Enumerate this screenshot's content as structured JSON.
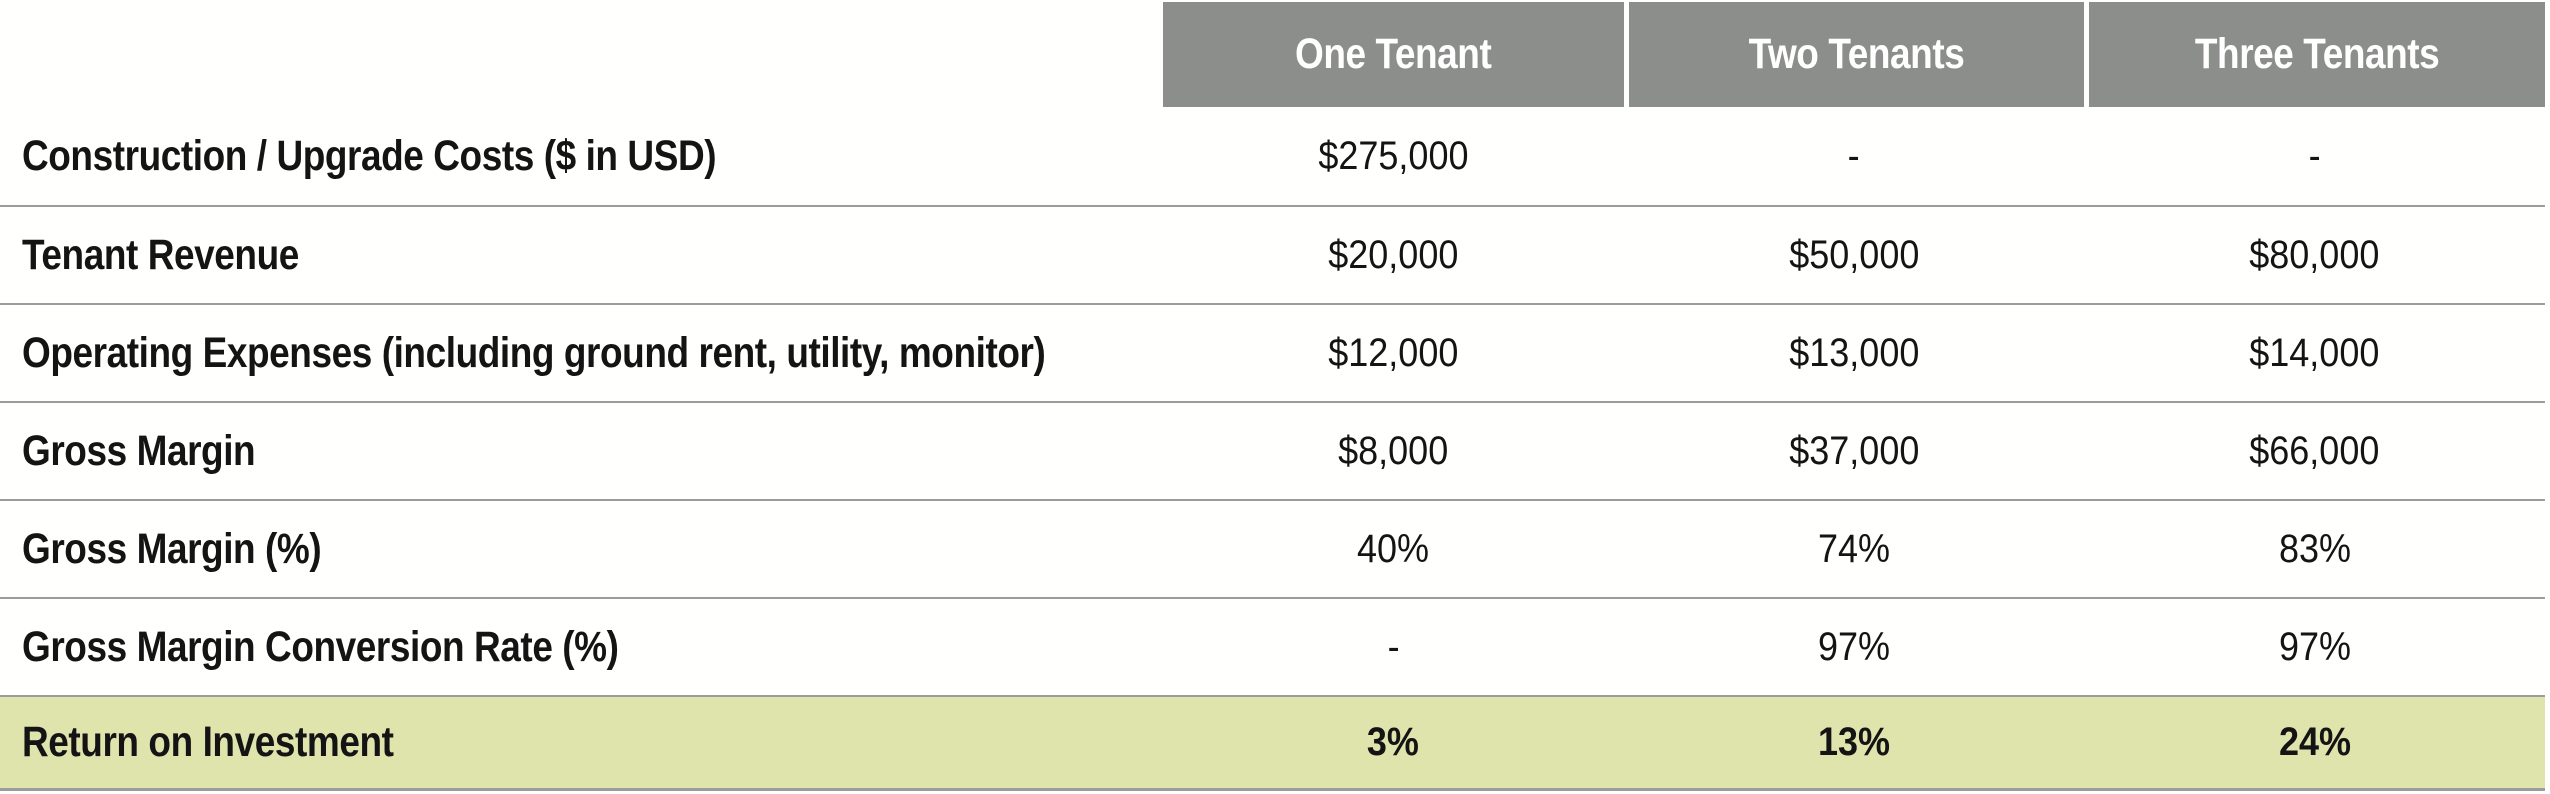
{
  "table": {
    "columns": [
      "One Tenant",
      "Two Tenants",
      "Three Tenants"
    ],
    "rows": [
      {
        "label": "Construction / Upgrade Costs ($ in USD)",
        "values": [
          "$275,000",
          "-",
          "-"
        ],
        "highlight": false
      },
      {
        "label": "Tenant Revenue",
        "values": [
          "$20,000",
          "$50,000",
          "$80,000"
        ],
        "highlight": false
      },
      {
        "label": "Operating Expenses (including ground rent, utility, monitor)",
        "values": [
          "$12,000",
          "$13,000",
          "$14,000"
        ],
        "highlight": false
      },
      {
        "label": "Gross Margin",
        "values": [
          "$8,000",
          "$37,000",
          "$66,000"
        ],
        "highlight": false
      },
      {
        "label": "Gross Margin (%)",
        "values": [
          "40%",
          "74%",
          "83%"
        ],
        "highlight": false
      },
      {
        "label": "Gross Margin Conversion Rate (%)",
        "values": [
          "-",
          "97%",
          "97%"
        ],
        "highlight": false
      },
      {
        "label": "Return on Investment",
        "values": [
          "3%",
          "13%",
          "24%"
        ],
        "highlight": true
      }
    ],
    "colors": {
      "header_bg": "#8C8E8B",
      "header_text": "#FFFFFF",
      "highlight_bg": "#DFE3AC",
      "divider": "#9C9C9C",
      "text": "#141414"
    }
  },
  "chart_data": {
    "type": "table",
    "title": "",
    "columns": [
      "",
      "One Tenant",
      "Two Tenants",
      "Three Tenants"
    ],
    "rows": [
      [
        "Construction / Upgrade Costs ($ in USD)",
        "$275,000",
        "-",
        "-"
      ],
      [
        "Tenant Revenue",
        "$20,000",
        "$50,000",
        "$80,000"
      ],
      [
        "Operating Expenses (including ground rent, utility, monitor)",
        "$12,000",
        "$13,000",
        "$14,000"
      ],
      [
        "Gross Margin",
        "$8,000",
        "$37,000",
        "$66,000"
      ],
      [
        "Gross Margin (%)",
        "40%",
        "74%",
        "83%"
      ],
      [
        "Gross Margin Conversion Rate (%)",
        "-",
        "97%",
        "97%"
      ],
      [
        "Return on Investment",
        "3%",
        "13%",
        "24%"
      ]
    ],
    "numeric": {
      "construction_upgrade_costs_usd": [
        275000,
        null,
        null
      ],
      "tenant_revenue_usd": [
        20000,
        50000,
        80000
      ],
      "operating_expenses_usd": [
        12000,
        13000,
        14000
      ],
      "gross_margin_usd": [
        8000,
        37000,
        66000
      ],
      "gross_margin_pct": [
        40,
        74,
        83
      ],
      "gross_margin_conversion_rate_pct": [
        null,
        97,
        97
      ],
      "return_on_investment_pct": [
        3,
        13,
        24
      ]
    },
    "highlight_row": "Return on Investment",
    "layout": {
      "header_fill": "#8C8E8B",
      "highlight_fill": "#DFE3AC",
      "grid": "horizontal-dividers"
    }
  }
}
